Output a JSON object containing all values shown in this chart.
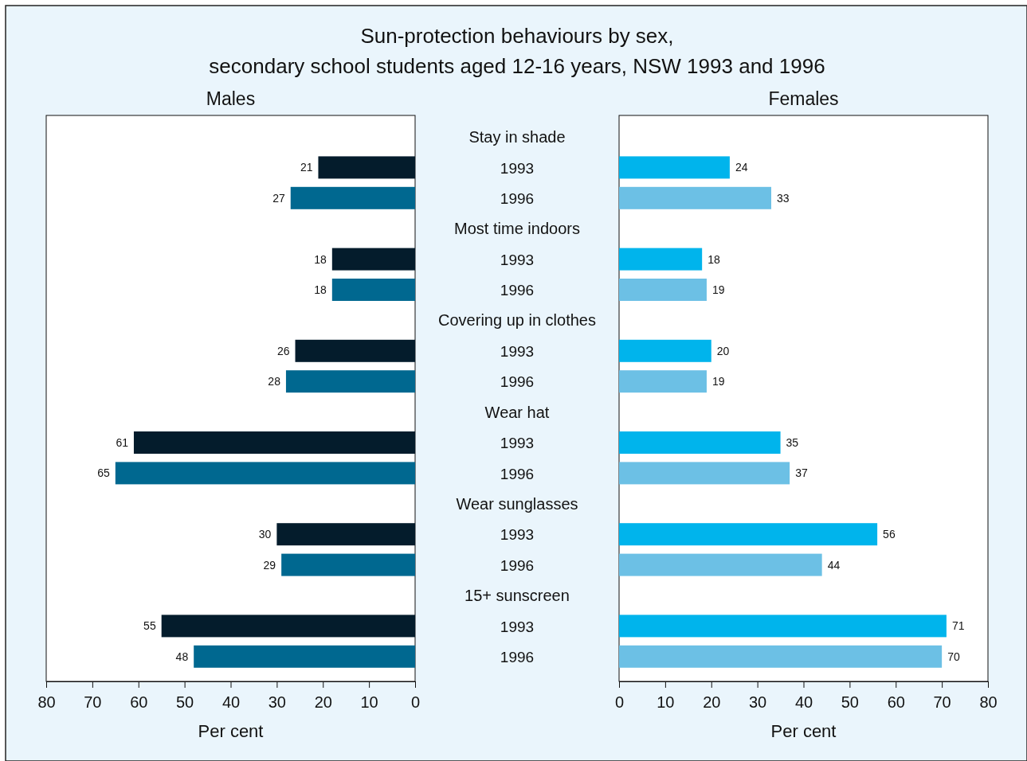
{
  "chart_data": [
    {
      "type": "bar",
      "orientation": "horizontal",
      "title": "Sun-protection behaviours by sex,\nsecondary school students aged 12-16 years, NSW 1993 and 1996",
      "subtitle": "Males",
      "xlabel": "Per cent",
      "categories": [
        "1993",
        "1996",
        "1993",
        "1996",
        "1993",
        "1996",
        "1993",
        "1996",
        "1993",
        "1996",
        "1993",
        "1996"
      ],
      "annotations": [
        "Stay in shade",
        "Most time indoors",
        "Covering up in clothes",
        "Wear hat",
        "Wear sunglasses",
        "15+ sunscreen"
      ],
      "values": [
        21,
        27,
        18,
        18,
        26,
        28,
        61,
        65,
        30,
        29,
        55,
        48
      ],
      "colors": [
        "#041c2c",
        "#006890",
        "#041c2c",
        "#006890",
        "#041c2c",
        "#006890",
        "#041c2c",
        "#006890",
        "#041c2c",
        "#006890",
        "#041c2c",
        "#006890"
      ],
      "xlim": [
        80,
        0
      ],
      "xticks": [
        80,
        70,
        60,
        50,
        40,
        30,
        20,
        10,
        0
      ],
      "data_labels": true
    },
    {
      "type": "bar",
      "orientation": "horizontal",
      "subtitle": "Females",
      "xlabel": "Per cent",
      "categories": [
        "1993",
        "1996",
        "1993",
        "1996",
        "1993",
        "1996",
        "1993",
        "1996",
        "1993",
        "1996",
        "1993",
        "1996"
      ],
      "values": [
        24,
        33,
        18,
        19,
        20,
        19,
        35,
        37,
        56,
        44,
        71,
        70
      ],
      "colors": [
        "#00b4ec",
        "#6cc0e5",
        "#00b4ec",
        "#6cc0e5",
        "#00b4ec",
        "#6cc0e5",
        "#00b4ec",
        "#6cc0e5",
        "#00b4ec",
        "#6cc0e5",
        "#00b4ec",
        "#6cc0e5"
      ],
      "xlim": [
        0,
        80
      ],
      "xticks": [
        0,
        10,
        20,
        30,
        40,
        50,
        60,
        70,
        80
      ],
      "data_labels": true,
      "tick_labels": "x"
    }
  ]
}
